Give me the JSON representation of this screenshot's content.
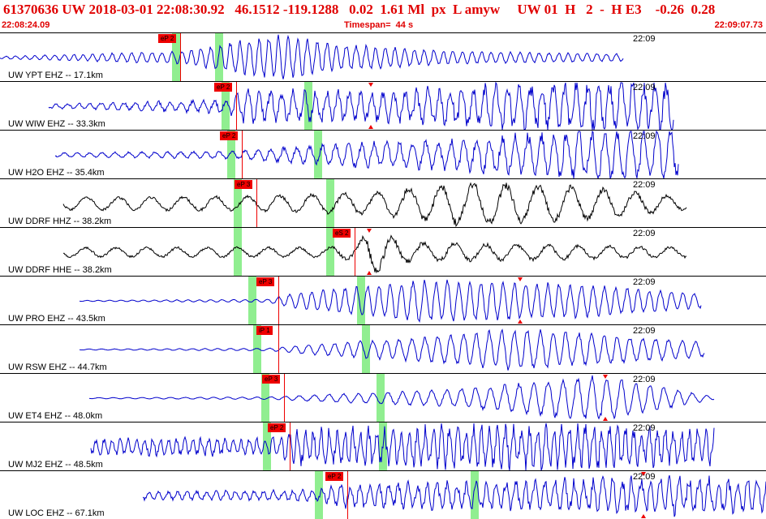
{
  "header": {
    "title": "61370636 UW 2018-03-01 22:08:30.92   46.1512 -119.1288   0.02  1.61 Ml  px  L amyw     UW 01  H   2  -  H E3    -0.26  0.28",
    "start_time": "22:08:24.09",
    "timespan": "Timespan=  44 s",
    "end_time": "22:09:07.73"
  },
  "colors": {
    "header_text": "#e00000",
    "trace_blue": "#0000cc",
    "trace_black": "#000000",
    "pick_flag": "#ee0000",
    "window_marker": "#90ee90"
  },
  "traces": [
    {
      "label": "UW YPT EHZ -- 17.1km",
      "pick": "eP 2",
      "time_tick": "22:09",
      "color": "blue"
    },
    {
      "label": "UW WIW EHZ -- 33.3km",
      "pick": "eP 2",
      "time_tick": "22:09",
      "color": "blue"
    },
    {
      "label": "UW H2O EHZ -- 35.4km",
      "pick": "eP 2",
      "time_tick": "22:09",
      "color": "blue"
    },
    {
      "label": "UW DDRF HHZ -- 38.2km",
      "pick": "eP 3",
      "time_tick": "22:09",
      "color": "black"
    },
    {
      "label": "UW DDRF HHE -- 38.2km",
      "pick": "eS 2",
      "time_tick": "22:09",
      "color": "black"
    },
    {
      "label": "UW PRO EHZ -- 43.5km",
      "pick": "eP 3",
      "time_tick": "22:09",
      "color": "blue"
    },
    {
      "label": "UW RSW EHZ -- 44.7km",
      "pick": "iP 1",
      "time_tick": "22:09",
      "color": "blue"
    },
    {
      "label": "UW ET4 EHZ -- 48.0km",
      "pick": "eP 3",
      "time_tick": "22:09",
      "color": "blue"
    },
    {
      "label": "UW MJ2 EHZ -- 48.5km",
      "pick": "eP 2",
      "time_tick": "22:09",
      "color": "blue"
    },
    {
      "label": "UW LOC EHZ -- 67.1km",
      "pick": "eP 2",
      "time_tick": "22:09",
      "color": "blue"
    }
  ]
}
